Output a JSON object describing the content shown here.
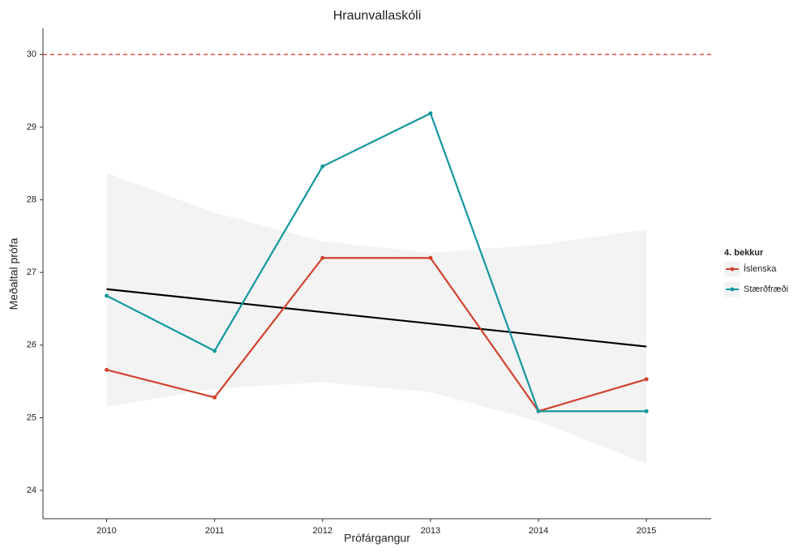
{
  "chart_data": {
    "type": "line",
    "title": "Hraunvallaskóli",
    "x_label": "Prófárgangur",
    "y_label": "Meðaltal prófa",
    "x": [
      2010,
      2011,
      2012,
      2013,
      2014,
      2015
    ],
    "series": [
      {
        "name": "Íslenska",
        "color": "#d1432f",
        "values": [
          25.66,
          25.28,
          27.2,
          27.2,
          25.09,
          25.53
        ]
      },
      {
        "name": "Stærðfræði",
        "color": "#12979f",
        "values": [
          26.68,
          25.92,
          28.46,
          29.19,
          25.09,
          25.09
        ]
      }
    ],
    "trend": {
      "x": [
        2010,
        2015
      ],
      "values": [
        26.77,
        25.98
      ],
      "color": "#000000"
    },
    "band": {
      "x": [
        2010,
        2011,
        2012,
        2013,
        2014,
        2015
      ],
      "upper": [
        28.37,
        27.82,
        27.43,
        27.27,
        27.38,
        27.59
      ],
      "lower": [
        25.15,
        25.4,
        25.49,
        25.35,
        24.95,
        24.37
      ],
      "color": "#ebebeb"
    },
    "reference_line": {
      "value": 30,
      "color": "#e8332a"
    },
    "legend_title": "4. bekkur",
    "legend_position": "right",
    "xlim": [
      2009.41,
      2015.6
    ],
    "xticks": [
      2010,
      2011,
      2012,
      2013,
      2014,
      2015
    ],
    "ylim": [
      23.61,
      30.36
    ],
    "yticks": [
      24,
      25,
      26,
      27,
      28,
      29,
      30
    ]
  }
}
